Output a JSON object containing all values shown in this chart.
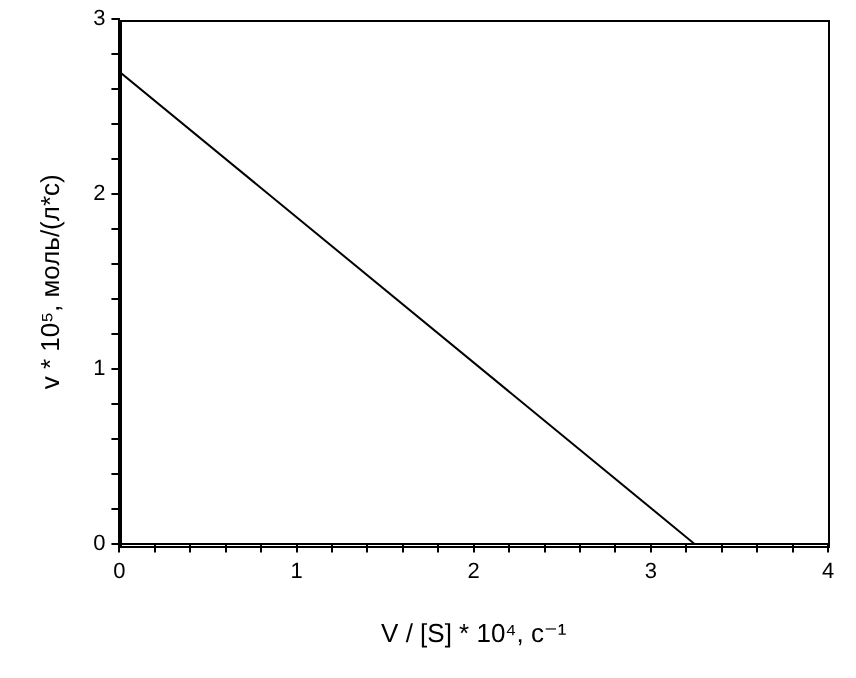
{
  "chart_data": {
    "type": "line",
    "xlabel": "V / [S] * 10⁴, с⁻¹",
    "ylabel": "v * 10⁵, моль/(л*с)",
    "x": [
      0,
      3.25
    ],
    "series": [
      {
        "color": "#000000",
        "values": [
          2.7,
          0
        ]
      }
    ],
    "xlim": [
      0,
      4
    ],
    "ylim": [
      0,
      3
    ],
    "xticks": [
      0,
      {
        "value": 0.2,
        "label": null
      },
      {
        "value": 0.4,
        "label": null
      },
      {
        "value": 0.6,
        "label": null
      },
      {
        "value": 0.8,
        "label": null
      },
      1,
      {
        "value": 1.2,
        "label": null
      },
      {
        "value": 1.4,
        "label": null
      },
      {
        "value": 1.6,
        "label": null
      },
      {
        "value": 1.8,
        "label": null
      },
      2,
      {
        "value": 2.2,
        "label": null
      },
      {
        "value": 2.4,
        "label": null
      },
      {
        "value": 2.6,
        "label": null
      },
      {
        "value": 2.8,
        "label": null
      },
      3,
      {
        "value": 3.2,
        "label": null
      },
      {
        "value": 3.4,
        "label": null
      },
      {
        "value": 3.6,
        "label": null
      },
      {
        "value": 3.8,
        "label": null
      },
      4
    ],
    "yticks": [
      0,
      {
        "value": 0.2,
        "label": null
      },
      {
        "value": 0.4,
        "label": null
      },
      {
        "value": 0.6,
        "label": null
      },
      {
        "value": 0.8,
        "label": null
      },
      1,
      {
        "value": 1.2,
        "label": null
      },
      {
        "value": 1.4,
        "label": null
      },
      {
        "value": 1.6,
        "label": null
      },
      {
        "value": 1.8,
        "label": null
      },
      2,
      {
        "value": 2.2,
        "label": null
      },
      {
        "value": 2.4,
        "label": null
      },
      {
        "value": 2.6,
        "label": null
      },
      {
        "value": 2.8,
        "label": null
      },
      3
    ],
    "grid": false,
    "legend": false,
    "marker": "none",
    "line_style": "solid"
  }
}
